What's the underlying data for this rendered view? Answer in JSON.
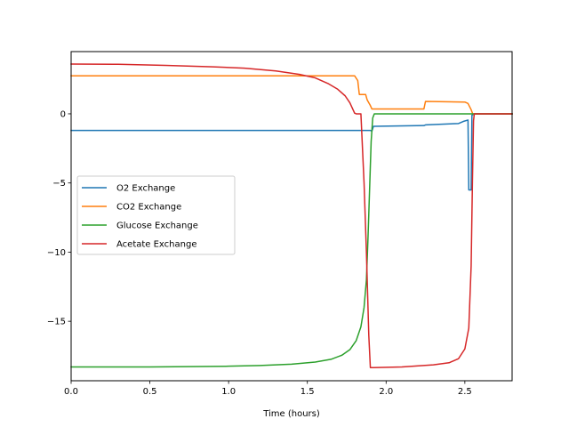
{
  "chart_data": {
    "type": "line",
    "xlabel": "Time (hours)",
    "ylabel": "",
    "xlim": [
      0,
      2.8
    ],
    "ylim": [
      -19.3,
      4.5
    ],
    "xticks": [
      0.0,
      0.5,
      1.0,
      1.5,
      2.0,
      2.5
    ],
    "xtick_labels": [
      "0.0",
      "0.5",
      "1.0",
      "1.5",
      "2.0",
      "2.5"
    ],
    "yticks": [
      0,
      -5,
      -10,
      -15
    ],
    "ytick_labels": [
      "0",
      "−5",
      "−10",
      "−15"
    ],
    "grid": false,
    "legend_position": "center-left",
    "series": [
      {
        "name": "O2 Exchange",
        "color": "#1f77b4",
        "x": [
          0,
          1.9,
          1.91,
          1.92,
          2.24,
          2.25,
          2.46,
          2.49,
          2.52,
          2.525,
          2.54,
          2.545,
          2.56,
          2.8
        ],
        "y": [
          -1.2,
          -1.2,
          -1.25,
          -0.9,
          -0.85,
          -0.8,
          -0.7,
          -0.55,
          -0.45,
          -5.5,
          -5.5,
          -0.1,
          0.0,
          0.0
        ]
      },
      {
        "name": "CO2 Exchange",
        "color": "#ff7f0e",
        "x": [
          0,
          1.8,
          1.82,
          1.83,
          1.87,
          1.88,
          1.9,
          1.91,
          1.92,
          2.24,
          2.25,
          2.5,
          2.52,
          2.54,
          2.55,
          2.8
        ],
        "y": [
          2.75,
          2.75,
          2.4,
          1.4,
          1.4,
          1.0,
          0.6,
          0.35,
          0.35,
          0.35,
          0.9,
          0.85,
          0.75,
          0.3,
          0.0,
          0.0
        ]
      },
      {
        "name": "Glucose Exchange",
        "color": "#2ca02c",
        "x": [
          0,
          0.5,
          1.0,
          1.2,
          1.4,
          1.55,
          1.65,
          1.72,
          1.77,
          1.81,
          1.84,
          1.86,
          1.875,
          1.885,
          1.895,
          1.905,
          1.915,
          1.925,
          2.8
        ],
        "y": [
          -18.3,
          -18.3,
          -18.25,
          -18.2,
          -18.1,
          -17.95,
          -17.75,
          -17.45,
          -17.05,
          -16.4,
          -15.4,
          -14.0,
          -12.0,
          -9.0,
          -5.5,
          -2.0,
          -0.3,
          0.0,
          0.0
        ]
      },
      {
        "name": "Acetate Exchange",
        "color": "#d62728",
        "x": [
          0,
          0.3,
          0.6,
          0.9,
          1.1,
          1.3,
          1.45,
          1.55,
          1.63,
          1.69,
          1.74,
          1.77,
          1.8,
          1.81,
          1.84,
          1.86,
          1.875,
          1.89,
          1.9,
          1.92,
          2.1,
          2.3,
          2.4,
          2.46,
          2.5,
          2.525,
          2.54,
          2.548,
          2.555,
          2.56,
          2.8
        ],
        "y": [
          3.6,
          3.58,
          3.5,
          3.4,
          3.3,
          3.1,
          2.85,
          2.6,
          2.2,
          1.8,
          1.3,
          0.8,
          0.05,
          0.0,
          0.0,
          -5.0,
          -10.0,
          -16.0,
          -18.35,
          -18.35,
          -18.3,
          -18.15,
          -18.0,
          -17.7,
          -17.0,
          -15.5,
          -11.0,
          -5.0,
          -0.5,
          0.0,
          0.0
        ]
      }
    ]
  }
}
